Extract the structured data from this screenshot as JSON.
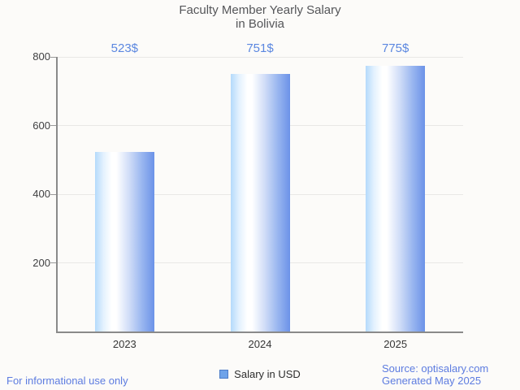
{
  "title": {
    "line1": "Faculty Member Yearly Salary",
    "line2": "in Bolivia"
  },
  "chart_data": {
    "type": "bar",
    "title": "Faculty Member Yearly Salary in Bolivia",
    "categories": [
      "2023",
      "2024",
      "2025"
    ],
    "series": [
      {
        "name": "Salary in USD",
        "values": [
          523,
          751,
          775
        ]
      }
    ],
    "value_labels": [
      "523$",
      "751$",
      "775$"
    ],
    "xlabel": "",
    "ylabel": "",
    "ylim": [
      0,
      800
    ],
    "yticks": [
      200,
      400,
      600,
      800
    ],
    "grid": true,
    "legend_position": "bottom"
  },
  "legend": {
    "label": "Salary in USD"
  },
  "footer": {
    "left_note": "For informational use only",
    "source": "Source: optisalary.com",
    "generated": "Generated May 2025"
  },
  "colors": {
    "background": "#fcfbf9",
    "title": "#555659",
    "accent_blue": "#5b87e0",
    "footer_blue": "#5d7ce0",
    "grid": "#e9e8e6",
    "axis": "#8a8a8a",
    "tick": "#999999",
    "y_label": "#404042",
    "x_label": "#363636",
    "bar_gradient_left": "#b4dafb",
    "bar_gradient_mid": "#ffffff",
    "bar_gradient_right": "#6b92e8",
    "legend_swatch_fill": "#6ea3e9",
    "legend_swatch_border": "#4b7bc8"
  }
}
